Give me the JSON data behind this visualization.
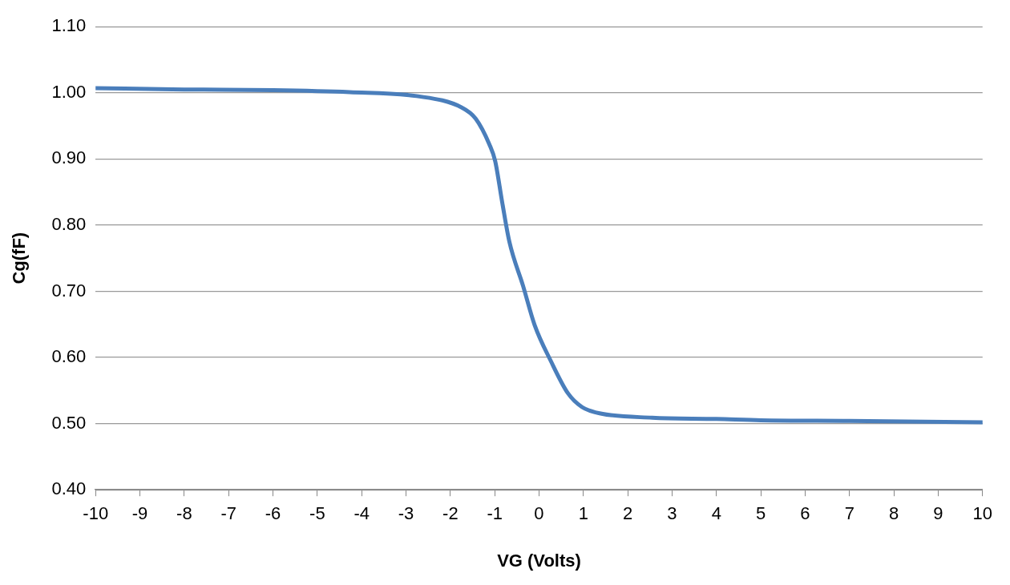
{
  "chart_data": {
    "type": "line",
    "xlabel": "VG (Volts)",
    "ylabel": "Cg(fF)",
    "xlim": [
      -10,
      10
    ],
    "xticks": [
      -10,
      -9,
      -8,
      -7,
      -6,
      -5,
      -4,
      -3,
      -2,
      -1,
      0,
      1,
      2,
      3,
      4,
      5,
      6,
      7,
      8,
      9,
      10
    ],
    "ylim": [
      0.4,
      1.1
    ],
    "yticks": [
      {
        "value": 0.4,
        "label": "0.40"
      },
      {
        "value": 0.5,
        "label": "0.50"
      },
      {
        "value": 0.6,
        "label": "0.60"
      },
      {
        "value": 0.7,
        "label": "0.70"
      },
      {
        "value": 0.8,
        "label": "0.80"
      },
      {
        "value": 0.9,
        "label": "0.90"
      },
      {
        "value": 1.0,
        "label": "1.00"
      },
      {
        "value": 1.1,
        "label": "1.10"
      }
    ],
    "grid": "y",
    "legend": false,
    "marker": "none",
    "line_style": "solid",
    "series": [
      {
        "color": "#4a7ebb",
        "x": [
          -10,
          -8,
          -6,
          -4.27,
          -2.76,
          -1.75,
          -1.43,
          -1.12,
          -0.99,
          -0.83,
          -0.67,
          -0.36,
          -0.1,
          0.27,
          0.65,
          0.97,
          1.41,
          2.55,
          4,
          5,
          7,
          10
        ],
        "values": [
          1.007,
          1.005,
          1.004,
          1.001,
          0.995,
          0.978,
          0.961,
          0.922,
          0.897,
          0.834,
          0.775,
          0.708,
          0.649,
          0.594,
          0.546,
          0.525,
          0.515,
          0.509,
          0.507,
          0.505,
          0.504,
          0.502
        ]
      }
    ]
  }
}
